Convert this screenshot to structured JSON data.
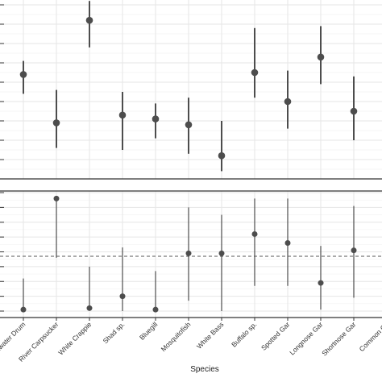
{
  "chart_data": {
    "type": "scatter",
    "style": "point estimates with vertical interval bars, two stacked panels sharing the x axis",
    "xlabel": "Species",
    "categories": [
      "Freshwater Drum",
      "River Carpsucker",
      "White Crappie",
      "Shad sp.",
      "Bluegill",
      "Mosquitofish",
      "White Bass",
      "Buffalo sp.",
      "Spotted Gar",
      "Longnose Gar",
      "Shortnose Gar",
      "Common Carp"
    ],
    "category_labels_shown": [
      "eshwater Drum",
      "River Carpsucker",
      "White Crappie",
      "Shad sp.",
      "Bluegill",
      "Mosquitofish",
      "White Bass",
      "Buffalo sp.",
      "Spotted Gar",
      "Longnose Gar",
      "Shortnose Gar",
      "Common Ca"
    ],
    "grid": true,
    "colors": {
      "point": "#4d4d4d",
      "grid": "#e6e6e6",
      "axis": "#333333",
      "reference_line": "#555555"
    },
    "panels": [
      {
        "name": "top",
        "y_tick_labels_visible": false,
        "ylim": [
          0,
          9
        ],
        "yticks": [
          0,
          1,
          2,
          3,
          4,
          5,
          6,
          7,
          8,
          9
        ],
        "series": [
          {
            "points": [
              {
                "x": "Freshwater Drum",
                "y": 5.4,
                "low": 4.4,
                "high": 6.1
              },
              {
                "x": "River Carpsucker",
                "y": 2.9,
                "low": 1.6,
                "high": 4.6
              },
              {
                "x": "White Crappie",
                "y": 8.2,
                "low": 6.8,
                "high": 9.2
              },
              {
                "x": "Shad sp.",
                "y": 3.3,
                "low": 1.5,
                "high": 4.5
              },
              {
                "x": "Bluegill",
                "y": 3.1,
                "low": 2.1,
                "high": 3.9
              },
              {
                "x": "Mosquitofish",
                "y": 2.8,
                "low": 1.3,
                "high": 4.2
              },
              {
                "x": "White Bass",
                "y": 1.2,
                "low": 0.4,
                "high": 3.0
              },
              {
                "x": "Buffalo sp.",
                "y": 5.5,
                "low": 4.2,
                "high": 7.8
              },
              {
                "x": "Spotted Gar",
                "y": 4.0,
                "low": 2.6,
                "high": 5.6
              },
              {
                "x": "Longnose Gar",
                "y": 6.3,
                "low": 4.9,
                "high": 7.9
              },
              {
                "x": "Shortnose Gar",
                "y": 3.5,
                "low": 2.0,
                "high": 5.3
              }
            ]
          }
        ]
      },
      {
        "name": "bottom",
        "y_tick_labels_visible": false,
        "ylim": [
          0,
          8
        ],
        "yticks": [
          0,
          1,
          2,
          3,
          4,
          5,
          6,
          7,
          8
        ],
        "reference_line": {
          "y": 3.7,
          "style": "dashed"
        },
        "series": [
          {
            "points": [
              {
                "x": "Freshwater Drum",
                "y": 0.1,
                "low": 0.0,
                "high": 2.2
              },
              {
                "x": "River Carpsucker",
                "y": 7.6,
                "low": 3.6,
                "high": 7.6
              },
              {
                "x": "White Crappie",
                "y": 0.2,
                "low": 0.1,
                "high": 3.0
              },
              {
                "x": "Shad sp.",
                "y": 1.0,
                "low": 0.0,
                "high": 4.3
              },
              {
                "x": "Bluegill",
                "y": 0.1,
                "low": 0.0,
                "high": 2.7
              },
              {
                "x": "Mosquitofish",
                "y": 3.9,
                "low": 0.7,
                "high": 7.0
              },
              {
                "x": "White Bass",
                "y": 3.9,
                "low": 0.0,
                "high": 6.5
              },
              {
                "x": "Buffalo sp.",
                "y": 5.2,
                "low": 1.7,
                "high": 7.6
              },
              {
                "x": "Spotted Gar",
                "y": 4.6,
                "low": 1.7,
                "high": 7.6
              },
              {
                "x": "Longnose Gar",
                "y": 1.9,
                "low": 0.1,
                "high": 4.4
              },
              {
                "x": "Shortnose Gar",
                "y": 4.1,
                "low": 0.9,
                "high": 7.1
              }
            ]
          }
        ]
      }
    ]
  }
}
